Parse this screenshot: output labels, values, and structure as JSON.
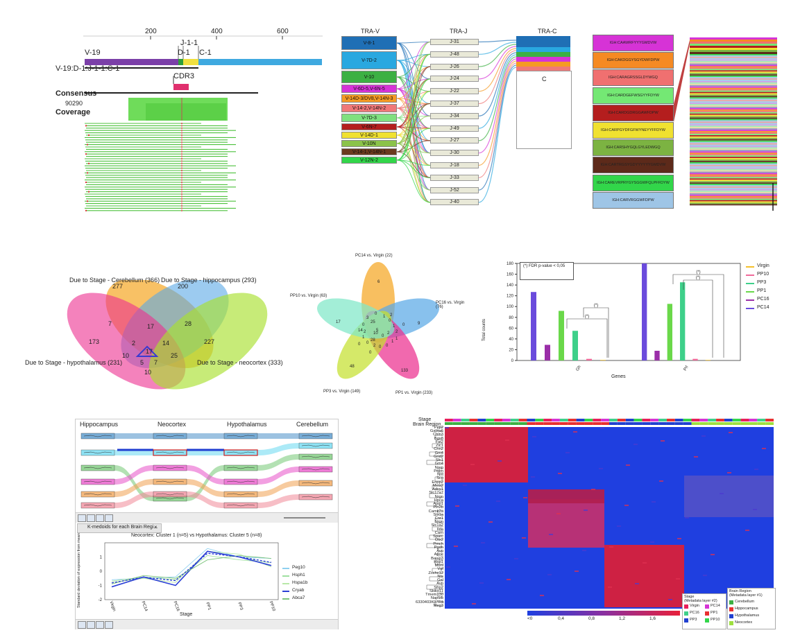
{
  "alignment": {
    "ruler_ticks": [
      "200",
      "400",
      "600"
    ],
    "segment_labels": [
      "V-19",
      "J-1-1",
      "D-1",
      "C-1"
    ],
    "read_name": "V-19:D-1:J-1-1:C-1",
    "cdr3_label": "CDR3",
    "consensus_label": "Consensus",
    "coverage_max": "90290",
    "coverage_label": "Coverage"
  },
  "sankey_vj": {
    "headers": [
      "TRA-V",
      "TRA-J",
      "TRA-C"
    ],
    "v_items": [
      {
        "label": "V-8-1",
        "color": "#1f6fb5"
      },
      {
        "label": "V-7D-2",
        "color": "#29a8e0"
      },
      {
        "label": "V-10",
        "color": "#3cb043"
      },
      {
        "label": "V-6D-5,V-6N-5",
        "color": "#d633d6"
      },
      {
        "label": "V-14D-3/DV8,V-14N-3",
        "color": "#f59a23"
      },
      {
        "label": "V-14-2,V-14N-2",
        "color": "#f07878"
      },
      {
        "label": "V-7D-3",
        "color": "#7fe07f"
      },
      {
        "label": "V-6N-7",
        "color": "#b41e1e"
      },
      {
        "label": "V-14D-1",
        "color": "#f0e130"
      },
      {
        "label": "V-10N",
        "color": "#8bc34a"
      },
      {
        "label": "V-14-1,V-14N-1",
        "color": "#6b3a1f"
      },
      {
        "label": "V-12N-2",
        "color": "#32d64a"
      }
    ],
    "j_items": [
      "J-31",
      "J-48",
      "J-26",
      "J-24",
      "J-22",
      "J-37",
      "J-34",
      "J-49",
      "J-27",
      "J-30",
      "J-18",
      "J-33",
      "J-52",
      "J-40"
    ],
    "c_item": "C"
  },
  "clonotypes": {
    "items": [
      {
        "label": "IGH:CAAWRFYYYGMDVW",
        "color": "#d633d6"
      },
      {
        "label": "IGH:CAKDGGYSGYDWFDPW",
        "color": "#f58a23"
      },
      {
        "label": "IGH:CARAGRSSGLDYWGQ",
        "color": "#f07070"
      },
      {
        "label": "IGH:CARDGEFWSGYYFDYW",
        "color": "#74e874"
      },
      {
        "label": "IGH:CARDGDRGGAWFDPW",
        "color": "#b41e1e"
      },
      {
        "label": "IGH:CARPGYDFGFWYNEYYFFDYW",
        "color": "#f0e130"
      },
      {
        "label": "IGH:CARSHYGQLGYLEDWGQ",
        "color": "#7cb342"
      },
      {
        "label": "IGH:CARTRGSYGDYYYYYYGMDVW",
        "color": "#5d2a1a"
      },
      {
        "label": "IGH:CAREVRPRYGYSGGWFQLPFFDYW",
        "color": "#32d64a"
      },
      {
        "label": "IGH:CARVRGGWFDPW",
        "color": "#9ec5e6"
      }
    ]
  },
  "venn4": {
    "sets": [
      {
        "label": "Due to Stage - Cerebellum (366)",
        "color": "#f5a623"
      },
      {
        "label": "Due to Stage - hippocampus (293)",
        "color": "#5aa9e6"
      },
      {
        "label": "Due to Stage - hypothalamus (231)",
        "color": "#ec2f8f"
      },
      {
        "label": "Due to Stage - neocortex (333)",
        "color": "#a9e02f"
      }
    ],
    "counts": [
      "277",
      "200",
      "173",
      "227",
      "7",
      "17",
      "28",
      "2",
      "14",
      "10",
      "17",
      "25",
      "5",
      "7",
      "10"
    ]
  },
  "venn5": {
    "sets": [
      {
        "label": "PC14 vs. Virgin (22)",
        "color": "#f5a623"
      },
      {
        "label": "PC16 vs. Virgin (76)",
        "color": "#5aa9e6"
      },
      {
        "label": "PP1 vs. Virgin (233)",
        "color": "#ec2f8f"
      },
      {
        "label": "PP3 vs. Virgin (149)",
        "color": "#c5e02f"
      },
      {
        "label": "PP10 vs. Virgin (63)",
        "color": "#7fe8c8"
      }
    ],
    "counts": [
      "6",
      "9",
      "133",
      "48",
      "17",
      "5",
      "25",
      "28",
      "2",
      "1",
      "0",
      "1",
      "2",
      "1",
      "0",
      "0",
      "2",
      "0",
      "1",
      "0",
      "3",
      "14",
      "10",
      "0",
      "2",
      "2",
      "1",
      "0",
      "0",
      "0",
      "0"
    ]
  },
  "chart_data": [
    {
      "type": "bar",
      "title": "",
      "xlabel": "Genes",
      "ylabel": "Total counts",
      "ylim": [
        0,
        180
      ],
      "yticks": [
        "0",
        "20",
        "40",
        "60",
        "80",
        "100",
        "120",
        "140",
        "160",
        "180"
      ],
      "categories": [
        "Gh",
        "Prl"
      ],
      "series": [
        {
          "name": "PC14",
          "color": "#6a4bdc",
          "values": [
            127,
            180
          ]
        },
        {
          "name": "PC16",
          "color": "#9a2ea8",
          "values": [
            29,
            18
          ]
        },
        {
          "name": "PP1",
          "color": "#6ad84a",
          "values": [
            92,
            105
          ]
        },
        {
          "name": "PP3",
          "color": "#3ed08a",
          "values": [
            55,
            145
          ]
        },
        {
          "name": "PP10",
          "color": "#f06a9a",
          "values": [
            3,
            3
          ]
        },
        {
          "name": "Virgin",
          "color": "#f5c02a",
          "values": [
            1,
            1
          ]
        }
      ],
      "legend": [
        "Virgin",
        "PP10",
        "PP3",
        "PP1",
        "PC16",
        "PC14"
      ],
      "legend_placement": "right",
      "annotation": "(*)  FDR p-value < 0,05",
      "sig_marks": [
        "(*)",
        "(*)",
        "(*)",
        "(*)"
      ]
    },
    {
      "type": "line",
      "title": "Neocortex: Cluster 1 (n=5) vs Hypothalamus: Cluster 5 (n=8)",
      "xlabel": "Stage",
      "ylabel": "Standard deviation of expression from mean",
      "categories": [
        "Virgin",
        "PC14",
        "PC16",
        "PP1",
        "PP3",
        "PP10"
      ],
      "ylim": [
        -2,
        2
      ],
      "yticks": [
        "-2",
        "-1",
        "0",
        "1"
      ],
      "series": [
        {
          "name": "Peg10",
          "color": "#8ed0f0",
          "values": [
            -0.6,
            -0.5,
            -0.4,
            1.6,
            1.0,
            0.9
          ]
        },
        {
          "name": "Hsph1",
          "color": "#9fe0a0",
          "values": [
            -0.7,
            -0.4,
            -0.6,
            1.1,
            0.8,
            0.6
          ]
        },
        {
          "name": "Hspa1b",
          "color": "#b8e8a8",
          "values": [
            -0.8,
            -0.5,
            -0.8,
            1.4,
            1.2,
            0.3
          ]
        },
        {
          "name": "Cryab",
          "color": "#2b3fd6",
          "values": [
            -1.1,
            -0.4,
            -1.0,
            1.4,
            1.0,
            0.4
          ]
        },
        {
          "name": "Abca7",
          "color": "#7cc47c",
          "values": [
            -0.9,
            -0.3,
            -0.5,
            0.8,
            1.1,
            0.9
          ]
        }
      ]
    }
  ],
  "alluvial": {
    "columns": [
      "Hippocampus",
      "Neocortex",
      "Hypothalamus",
      "Cerebellum"
    ],
    "tab_title": "K-medoids for each Brain Regi...",
    "tab_close": "×"
  },
  "heatmap": {
    "stage_label": "Stage",
    "region_label": "Brain Region",
    "genes": [
      "Pcp2",
      "Gabra6",
      "Cbln3",
      "Bgs8",
      "Fat2",
      "Zic1",
      "Chn2",
      "Gm4",
      "Grid2",
      "Slc1",
      "Gm4",
      "Nrep",
      "Prdm",
      "Nnt",
      "Scg",
      "Enpp2",
      "Meis2",
      "Adcy1",
      "Slc17a7",
      "Nrgn",
      "Hpca",
      "Ajap1",
      "Pln2b",
      "Camk2a",
      "Stx1a",
      "Cnr1",
      "Nrgn",
      "Slc1a2",
      "Ilda",
      "Carn",
      "Sparc",
      "Otx2",
      "Pmch",
      "Pgdh",
      "Avp",
      "Apoe",
      "Baiap3",
      "Hap1",
      "Mbnl",
      "Vgf",
      "Zcchc12",
      "Nts",
      "Gal",
      "Avp",
      "Sfrp2",
      "Skiko11",
      "Tmem130",
      "Nap1l5",
      "6330403K07Rik",
      "Meg3"
    ],
    "colorbar_ticks": [
      "<0",
      "0,4",
      "0,8",
      "1,2",
      "1,6"
    ],
    "stage_legend_title": "Stage\n(Metadata layer #2)",
    "stage_legend": [
      {
        "label": "Virgin",
        "color": "#e81e5a"
      },
      {
        "label": "PC14",
        "color": "#d633d6"
      },
      {
        "label": "PC16",
        "color": "#3ed08a"
      },
      {
        "label": "PP1",
        "color": "#e83030"
      },
      {
        "label": "PP3",
        "color": "#2040d0"
      },
      {
        "label": "PP10",
        "color": "#32d64a"
      }
    ],
    "region_legend_title": "Brain Region\n(Metadata layer #1)",
    "region_legend": [
      {
        "label": "Cerebellum",
        "color": "#3cb043"
      },
      {
        "label": "Hippocampus",
        "color": "#e83030"
      },
      {
        "label": "Hypothalamus",
        "color": "#2040d0"
      },
      {
        "label": "Neocortex",
        "color": "#9ee040"
      }
    ]
  }
}
